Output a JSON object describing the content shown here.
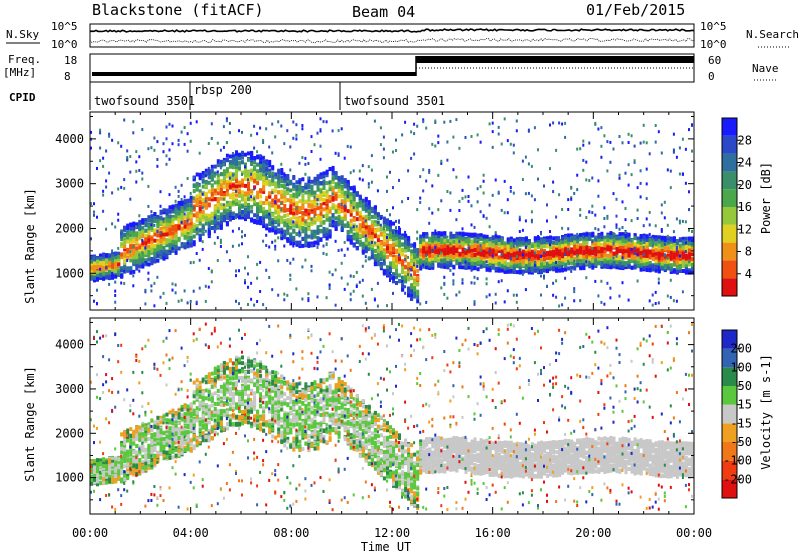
{
  "header": {
    "radar": "Blackstone (fitACF)",
    "beam": "Beam 04",
    "date": "01/Feb/2015"
  },
  "panels": {
    "nsky_label": "N.Sky",
    "nsearch_label": "N.Search",
    "freq_label": "Freq.",
    "freq_unit": "[MHz]",
    "nave_label": "Nave",
    "cpid_label": "CPID",
    "nsky_ticks": [
      "10^5",
      "10^0"
    ],
    "nsearch_ticks": [
      "10^5",
      "10^0"
    ],
    "freq_ticks": [
      "18",
      "8"
    ],
    "nave_ticks": [
      "60",
      "0"
    ],
    "cpid_segments": [
      {
        "label": "twofsound 3501",
        "start": 0.0,
        "end": 4.0
      },
      {
        "label": "rbsp 200",
        "start": 4.0,
        "end": 10.0
      },
      {
        "label": "twofsound 3501",
        "start": 10.0,
        "end": 24.0
      }
    ]
  },
  "chart_data": [
    {
      "type": "heatmap",
      "title": "",
      "ylabel": "Slant Range [km]",
      "xlabel": "",
      "x_ticks": [
        "00:00",
        "04:00",
        "08:00",
        "12:00",
        "16:00",
        "20:00",
        "00:00"
      ],
      "xlim": [
        0,
        24
      ],
      "y_ticks": [
        "1000",
        "2000",
        "3000",
        "4000"
      ],
      "ylim": [
        180,
        4600
      ],
      "colorbar": {
        "label": "Power [dB]",
        "ticks": [
          "4",
          "8",
          "12",
          "16",
          "20",
          "24",
          "28"
        ],
        "range": [
          0,
          32
        ],
        "colors": [
          "#1a1aff",
          "#2a48c8",
          "#2f6fa0",
          "#3a8f6a",
          "#4aa84a",
          "#96c83c",
          "#e0d020",
          "#f09018",
          "#f05010",
          "#e01010"
        ]
      }
    },
    {
      "type": "heatmap",
      "title": "",
      "ylabel": "Slant Range [km]",
      "xlabel": "Time UT",
      "x_ticks": [
        "00:00",
        "04:00",
        "08:00",
        "12:00",
        "16:00",
        "20:00",
        "00:00"
      ],
      "xlim": [
        0,
        24
      ],
      "y_ticks": [
        "1000",
        "2000",
        "3000",
        "4000"
      ],
      "ylim": [
        180,
        4600
      ],
      "colorbar": {
        "label": "Velocity [m s-1]",
        "ticks": [
          "200",
          "100",
          "50",
          "15",
          "-15",
          "-50",
          "-100",
          "-200"
        ],
        "range": [
          -250,
          250
        ],
        "colors": [
          "#1e28c8",
          "#3264b4",
          "#2a8a4a",
          "#5ac83c",
          "#c8c8c8",
          "#f0a020",
          "#f07818",
          "#f03c10",
          "#e01010"
        ]
      }
    }
  ]
}
